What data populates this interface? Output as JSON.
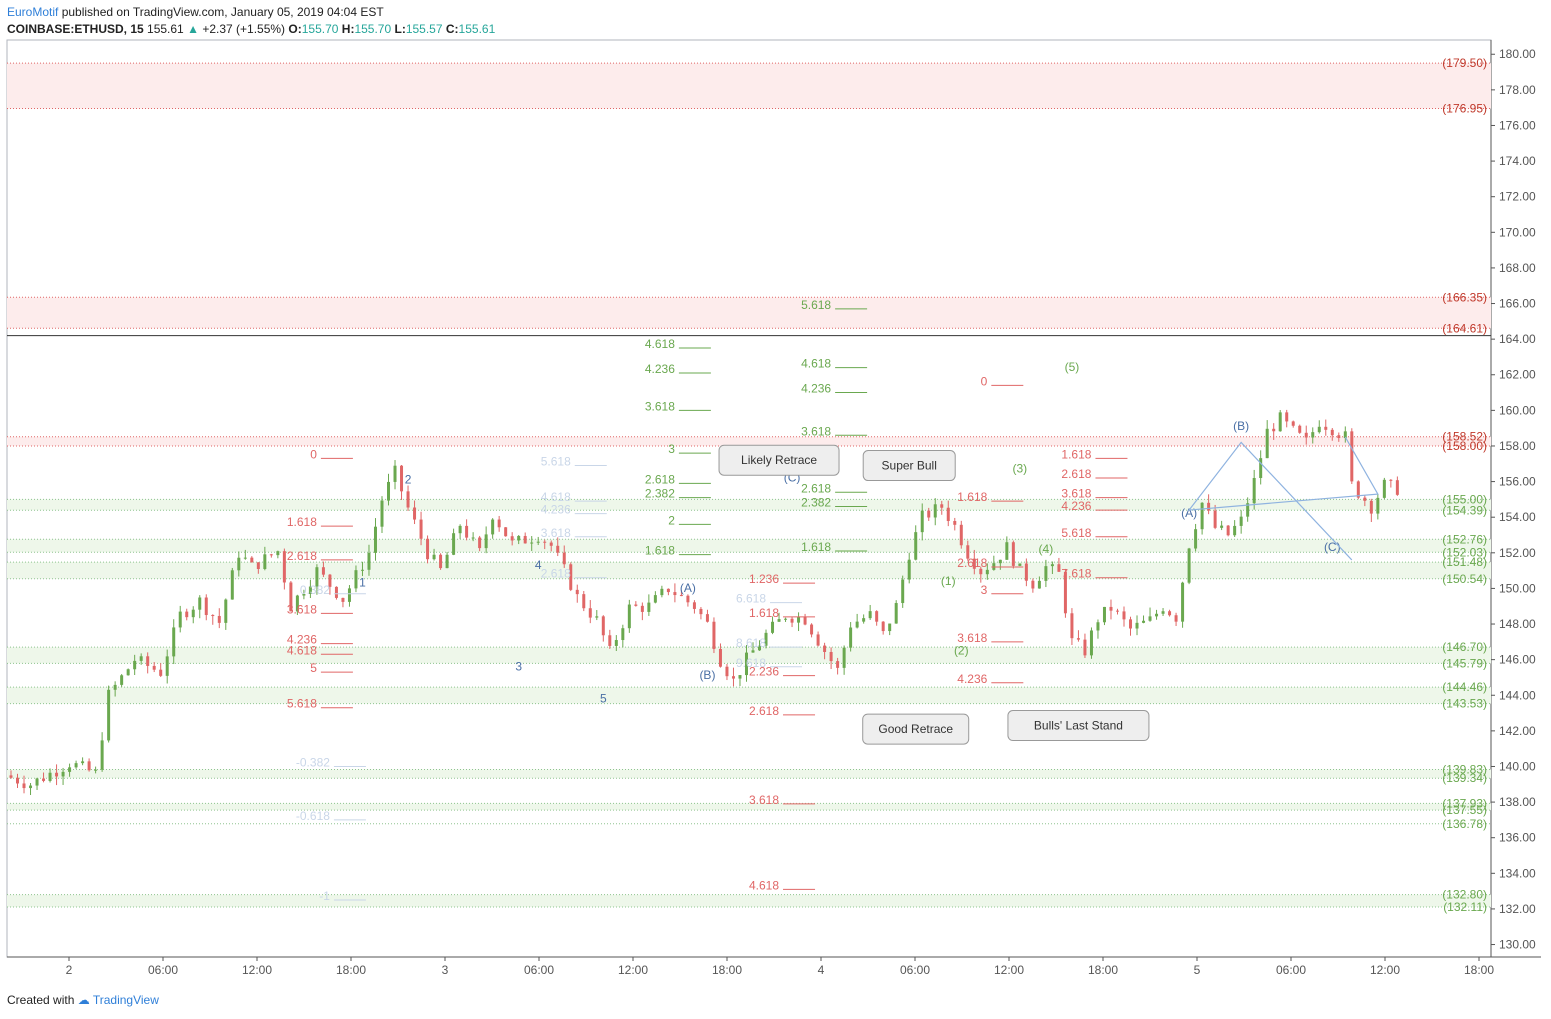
{
  "header": {
    "author": "EuroMotif",
    "published": "published on TradingView.com, January 05, 2019 04:04 EST",
    "symbol": "COINBASE:ETHUSD, 15",
    "last": "155.61",
    "change": "+2.37 (+1.55%)",
    "o_label": "O:",
    "o": "155.70",
    "h_label": "H:",
    "h": "155.70",
    "l_label": "L:",
    "l": "155.57",
    "c_label": "C:",
    "c": "155.61"
  },
  "footer": {
    "created": "Created with",
    "brand": "TradingView"
  },
  "colors": {
    "up": "#6aa84f",
    "down": "#e06666",
    "zone_red": "#fdecec",
    "zone_green": "#eef7ea",
    "green_text": "#6aa84f",
    "red_text": "#e06666",
    "blue_text": "#4a6fa5",
    "faint_blue": "#c9d6e8",
    "proj": "#8fb3e0"
  },
  "chart_data": {
    "type": "candlestick",
    "symbol": "COINBASE:ETHUSD",
    "interval": "15",
    "ylim": [
      129.3,
      180.8
    ],
    "y_ticks": [
      "180.00",
      "178.00",
      "176.00",
      "174.00",
      "172.00",
      "170.00",
      "168.00",
      "166.00",
      "164.00",
      "162.00",
      "160.00",
      "158.00",
      "156.00",
      "154.00",
      "152.00",
      "150.00",
      "148.00",
      "146.00",
      "144.00",
      "142.00",
      "140.00",
      "138.00",
      "136.00",
      "134.00",
      "132.00",
      "130.00"
    ],
    "x_ticks": [
      "2",
      "06:00",
      "12:00",
      "18:00",
      "3",
      "06:00",
      "12:00",
      "18:00",
      "4",
      "06:00",
      "12:00",
      "18:00",
      "5",
      "06:00",
      "12:00",
      "18:00"
    ],
    "price_path": [
      [
        0,
        139.5
      ],
      [
        4,
        139.0
      ],
      [
        10,
        140.2
      ],
      [
        14,
        139.6
      ],
      [
        16,
        144.0
      ],
      [
        20,
        146.0
      ],
      [
        24,
        145.3
      ],
      [
        27,
        148.5
      ],
      [
        30,
        149.3
      ],
      [
        33,
        148.1
      ],
      [
        36,
        152.0
      ],
      [
        38,
        151.2
      ],
      [
        42,
        152.1
      ],
      [
        44,
        149.0
      ],
      [
        48,
        151.0
      ],
      [
        52,
        149.4
      ],
      [
        56,
        152.0
      ],
      [
        58,
        155.0
      ],
      [
        60,
        156.5
      ],
      [
        62,
        154.5
      ],
      [
        65,
        152.0
      ],
      [
        67,
        151.0
      ],
      [
        70,
        153.6
      ],
      [
        73,
        152.0
      ],
      [
        75,
        154.2
      ],
      [
        78,
        152.5
      ],
      [
        82,
        153.0
      ],
      [
        84,
        152.4
      ],
      [
        86,
        151.0
      ],
      [
        88,
        149.5
      ],
      [
        91,
        148.2
      ],
      [
        93,
        146.4
      ],
      [
        96,
        148.9
      ],
      [
        99,
        149.0
      ],
      [
        102,
        150.0
      ],
      [
        104,
        149.5
      ],
      [
        106,
        149.0
      ],
      [
        108,
        148.0
      ],
      [
        110,
        146.0
      ],
      [
        112,
        144.8
      ],
      [
        114,
        146.0
      ],
      [
        117,
        147.4
      ],
      [
        120,
        148.5
      ],
      [
        123,
        148.3
      ],
      [
        126,
        146.5
      ],
      [
        128,
        145.4
      ],
      [
        130,
        148.0
      ],
      [
        133,
        148.5
      ],
      [
        135,
        147.4
      ],
      [
        137,
        149.0
      ],
      [
        139,
        152.0
      ],
      [
        141,
        154.0
      ],
      [
        144,
        154.6
      ],
      [
        146,
        153.5
      ],
      [
        148,
        152.0
      ],
      [
        150,
        151.0
      ],
      [
        152,
        151.5
      ],
      [
        154,
        152.3
      ],
      [
        156,
        151.0
      ],
      [
        158,
        150.3
      ],
      [
        160,
        151.2
      ],
      [
        162,
        150.8
      ],
      [
        164,
        147.0
      ],
      [
        166,
        146.5
      ],
      [
        168,
        148.3
      ],
      [
        170,
        148.9
      ],
      [
        173,
        147.7
      ],
      [
        176,
        148.2
      ],
      [
        178,
        149.0
      ],
      [
        180,
        148.4
      ],
      [
        182,
        152.5
      ],
      [
        184,
        154.8
      ],
      [
        186,
        153.4
      ],
      [
        188,
        153.0
      ],
      [
        190,
        153.8
      ],
      [
        192,
        156.0
      ],
      [
        194,
        158.8
      ],
      [
        196,
        159.5
      ],
      [
        198,
        158.8
      ],
      [
        200,
        158.2
      ],
      [
        202,
        159.4
      ],
      [
        204,
        159.0
      ],
      [
        206,
        158.5
      ],
      [
        207,
        155.8
      ],
      [
        210,
        154.6
      ],
      [
        212,
        155.8
      ],
      [
        214,
        155.6
      ]
    ],
    "zones": [
      {
        "label": "(179.50)",
        "from": 176.95,
        "to": 179.5,
        "color": "red"
      },
      {
        "label": "(176.95)",
        "from": 176.95,
        "to": 176.95,
        "color": "red"
      },
      {
        "label": "(166.35)",
        "from": 164.61,
        "to": 166.35,
        "color": "red"
      },
      {
        "label": "(164.61)",
        "from": 164.61,
        "to": 164.61,
        "color": "red"
      },
      {
        "label": "(158.52)",
        "from": 158.0,
        "to": 158.52,
        "color": "red"
      },
      {
        "label": "(158.00)",
        "from": 158.0,
        "to": 158.0,
        "color": "red"
      },
      {
        "label": "(155.00)",
        "from": 154.39,
        "to": 155.0,
        "color": "green"
      },
      {
        "label": "(154.39)",
        "from": 154.39,
        "to": 154.39,
        "color": "green"
      },
      {
        "label": "(152.76)",
        "from": 152.03,
        "to": 152.76,
        "color": "green"
      },
      {
        "label": "(152.03)",
        "from": 152.03,
        "to": 152.03,
        "color": "green"
      },
      {
        "label": "(151.48)",
        "from": 150.54,
        "to": 151.48,
        "color": "green"
      },
      {
        "label": "(150.54)",
        "from": 150.54,
        "to": 150.54,
        "color": "green"
      },
      {
        "label": "(146.70)",
        "from": 145.79,
        "to": 146.7,
        "color": "green"
      },
      {
        "label": "(145.79)",
        "from": 145.79,
        "to": 145.79,
        "color": "green"
      },
      {
        "label": "(144.46)",
        "from": 143.53,
        "to": 144.46,
        "color": "green"
      },
      {
        "label": "(143.53)",
        "from": 143.53,
        "to": 143.53,
        "color": "green"
      },
      {
        "label": "(139.83)",
        "from": 139.34,
        "to": 139.83,
        "color": "green"
      },
      {
        "label": "(139.34)",
        "from": 139.34,
        "to": 139.34,
        "color": "green"
      },
      {
        "label": "(137.93)",
        "from": 137.55,
        "to": 137.93,
        "color": "green"
      },
      {
        "label": "(137.55)",
        "from": 137.55,
        "to": 137.55,
        "color": "green"
      },
      {
        "label": "(136.78)",
        "from": 136.78,
        "to": 136.78,
        "color": "green"
      },
      {
        "label": "(132.80)",
        "from": 132.11,
        "to": 132.8,
        "color": "green"
      },
      {
        "label": "(132.11)",
        "from": 132.11,
        "to": 132.11,
        "color": "green"
      }
    ],
    "fib_levels": [
      {
        "text": "5.618",
        "price": 165.7,
        "x": 126,
        "color": "green"
      },
      {
        "text": "4.618",
        "price": 163.5,
        "x": 102,
        "color": "green"
      },
      {
        "text": "4.236",
        "price": 162.1,
        "x": 102,
        "color": "green"
      },
      {
        "text": "3.618",
        "price": 160.0,
        "x": 102,
        "color": "green"
      },
      {
        "text": "3",
        "price": 157.6,
        "x": 102,
        "color": "green"
      },
      {
        "text": "2.618",
        "price": 155.9,
        "x": 102,
        "color": "green"
      },
      {
        "text": "2.382",
        "price": 155.1,
        "x": 102,
        "color": "green"
      },
      {
        "text": "2",
        "price": 153.6,
        "x": 102,
        "color": "green"
      },
      {
        "text": "1.618",
        "price": 151.9,
        "x": 102,
        "color": "green"
      },
      {
        "text": "4.618",
        "price": 162.4,
        "x": 126,
        "color": "green"
      },
      {
        "text": "4.236",
        "price": 161.0,
        "x": 126,
        "color": "green"
      },
      {
        "text": "3.618",
        "price": 158.6,
        "x": 126,
        "color": "green"
      },
      {
        "text": "2.618",
        "price": 155.4,
        "x": 126,
        "color": "green"
      },
      {
        "text": "2.382",
        "price": 154.6,
        "x": 126,
        "color": "green"
      },
      {
        "text": "1.618",
        "price": 152.1,
        "x": 126,
        "color": "green"
      },
      {
        "text": "0",
        "price": 157.3,
        "x": 47,
        "color": "red"
      },
      {
        "text": "1.618",
        "price": 153.5,
        "x": 47,
        "color": "red"
      },
      {
        "text": "2.618",
        "price": 151.6,
        "x": 47,
        "color": "red"
      },
      {
        "text": "3.618",
        "price": 148.6,
        "x": 47,
        "color": "red"
      },
      {
        "text": "4.236",
        "price": 146.9,
        "x": 47,
        "color": "red"
      },
      {
        "text": "4.618",
        "price": 146.3,
        "x": 47,
        "color": "red"
      },
      {
        "text": "5",
        "price": 145.3,
        "x": 47,
        "color": "red"
      },
      {
        "text": "5.618",
        "price": 143.3,
        "x": 47,
        "color": "red"
      },
      {
        "text": "1.236",
        "price": 150.3,
        "x": 118,
        "color": "red"
      },
      {
        "text": "1.618",
        "price": 148.4,
        "x": 118,
        "color": "red"
      },
      {
        "text": "2.236",
        "price": 145.1,
        "x": 118,
        "color": "red"
      },
      {
        "text": "2.618",
        "price": 142.9,
        "x": 118,
        "color": "red"
      },
      {
        "text": "3.618",
        "price": 137.9,
        "x": 118,
        "color": "red"
      },
      {
        "text": "4.618",
        "price": 133.1,
        "x": 118,
        "color": "red"
      },
      {
        "text": "0",
        "price": 161.4,
        "x": 150,
        "color": "red"
      },
      {
        "text": "1.618",
        "price": 154.9,
        "x": 150,
        "color": "red"
      },
      {
        "text": "2.618",
        "price": 151.2,
        "x": 150,
        "color": "red"
      },
      {
        "text": "3",
        "price": 149.7,
        "x": 150,
        "color": "red"
      },
      {
        "text": "3.618",
        "price": 147.0,
        "x": 150,
        "color": "red"
      },
      {
        "text": "4.236",
        "price": 144.7,
        "x": 150,
        "color": "red"
      },
      {
        "text": "1.618",
        "price": 157.3,
        "x": 166,
        "color": "red"
      },
      {
        "text": "2.618",
        "price": 156.2,
        "x": 166,
        "color": "red"
      },
      {
        "text": "3.618",
        "price": 155.1,
        "x": 166,
        "color": "red"
      },
      {
        "text": "4.236",
        "price": 154.4,
        "x": 166,
        "color": "red"
      },
      {
        "text": "5.618",
        "price": 152.9,
        "x": 166,
        "color": "red"
      },
      {
        "text": "7.618",
        "price": 150.6,
        "x": 166,
        "color": "red"
      },
      {
        "text": "0.382",
        "price": 149.7,
        "x": 49,
        "color": "faint"
      },
      {
        "text": "-0.382",
        "price": 140.0,
        "x": 49,
        "color": "faint"
      },
      {
        "text": "-0.618",
        "price": 137.0,
        "x": 49,
        "color": "faint"
      },
      {
        "text": "-1",
        "price": 132.5,
        "x": 49,
        "color": "faint"
      },
      {
        "text": "5.618",
        "price": 156.9,
        "x": 86,
        "color": "faint"
      },
      {
        "text": "4.618",
        "price": 154.9,
        "x": 86,
        "color": "faint"
      },
      {
        "text": "4.236",
        "price": 154.2,
        "x": 86,
        "color": "faint"
      },
      {
        "text": "3.618",
        "price": 152.9,
        "x": 86,
        "color": "faint"
      },
      {
        "text": "2.618",
        "price": 150.6,
        "x": 86,
        "color": "faint"
      },
      {
        "text": "6.618",
        "price": 149.2,
        "x": 116,
        "color": "faint"
      },
      {
        "text": "8.618",
        "price": 146.7,
        "x": 116,
        "color": "faint"
      },
      {
        "text": "9.618",
        "price": 145.6,
        "x": 116,
        "color": "faint"
      }
    ],
    "wave_labels": [
      {
        "text": "2",
        "x": 61,
        "price": 155.9,
        "color": "blue"
      },
      {
        "text": "1",
        "x": 54,
        "price": 150.1,
        "color": "blue"
      },
      {
        "text": "4",
        "x": 81,
        "price": 151.1,
        "color": "blue"
      },
      {
        "text": "3",
        "x": 78,
        "price": 145.4,
        "color": "blue"
      },
      {
        "text": "5",
        "x": 91,
        "price": 143.6,
        "color": "blue"
      },
      {
        "text": "(A)",
        "x": 104,
        "price": 149.8,
        "color": "blue"
      },
      {
        "text": "(B)",
        "x": 107,
        "price": 144.9,
        "color": "blue"
      },
      {
        "text": "(C)",
        "x": 120,
        "price": 156.0,
        "color": "blue"
      },
      {
        "text": "(1)",
        "x": 144,
        "price": 150.2,
        "color": "green"
      },
      {
        "text": "(2)",
        "x": 146,
        "price": 146.3,
        "color": "green"
      },
      {
        "text": "(3)",
        "x": 155,
        "price": 156.5,
        "color": "green"
      },
      {
        "text": "(4)",
        "x": 159,
        "price": 152.0,
        "color": "green"
      },
      {
        "text": "(5)",
        "x": 163,
        "price": 162.2,
        "color": "green"
      },
      {
        "text": "(A)",
        "x": 181,
        "price": 154.0,
        "color": "blue"
      },
      {
        "text": "(B)",
        "x": 189,
        "price": 158.9,
        "color": "blue"
      },
      {
        "text": "(C)",
        "x": 203,
        "price": 152.1,
        "color": "blue"
      }
    ],
    "projection": [
      [
        205,
        158.5
      ],
      [
        210,
        155.3
      ],
      [
        181,
        154.4
      ],
      [
        189,
        158.2
      ],
      [
        206,
        151.6
      ]
    ],
    "callouts": [
      {
        "text": "Likely Retrace",
        "x": 118,
        "price": 157.2
      },
      {
        "text": "Super Bull",
        "x": 138,
        "price": 156.9
      },
      {
        "text": "Good Retrace",
        "x": 139,
        "price": 142.1
      },
      {
        "text": "Bulls' Last Stand",
        "x": 164,
        "price": 142.3
      }
    ]
  }
}
